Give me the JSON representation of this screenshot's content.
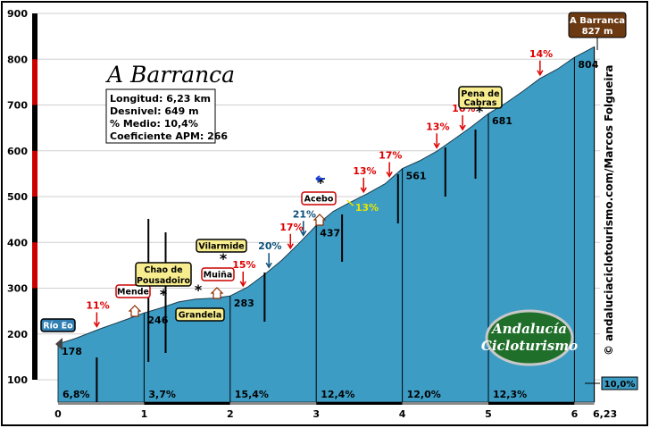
{
  "title": "A Barranca",
  "stats": [
    "Longitud: 6,23 km",
    "Desnivel: 649 m",
    "% Medio: 10,4%",
    "Coeficiente APM: 266"
  ],
  "credit": "© andaluciaciclotourismo.com/Marcos Folgueira",
  "logo": {
    "line1": "Andalucía",
    "line2": "Cicloturismo"
  },
  "summit_badge": {
    "name": "A Barranca",
    "alt": "827 m"
  },
  "average_badge": "10,0%",
  "colors": {
    "fill": "#3c9cc4",
    "red": "#dd0000",
    "blue": "#0b4f7a",
    "yellow": "#e6e600",
    "label_bg": "#f7ed8e",
    "summit_bg": "#6b3a12"
  },
  "chart_data": {
    "type": "area",
    "xlabel": "",
    "ylabel": "",
    "xlim": [
      0,
      6.23
    ],
    "ylim": [
      100,
      900
    ],
    "x_ticks": [
      "0",
      "1",
      "2",
      "3",
      "4",
      "5",
      "6",
      "6,23"
    ],
    "y_ticks": [
      "100",
      "200",
      "300",
      "400",
      "500",
      "600",
      "700",
      "800",
      "900"
    ],
    "profile": [
      [
        0,
        178
      ],
      [
        0.2,
        190
      ],
      [
        0.5,
        212
      ],
      [
        0.8,
        232
      ],
      [
        1.0,
        246
      ],
      [
        1.2,
        257
      ],
      [
        1.4,
        270
      ],
      [
        1.6,
        276
      ],
      [
        1.8,
        278
      ],
      [
        2.0,
        283
      ],
      [
        2.2,
        302
      ],
      [
        2.4,
        330
      ],
      [
        2.6,
        361
      ],
      [
        2.8,
        398
      ],
      [
        3.0,
        437
      ],
      [
        3.2,
        468
      ],
      [
        3.4,
        488
      ],
      [
        3.6,
        507
      ],
      [
        3.8,
        528
      ],
      [
        4.0,
        561
      ],
      [
        4.2,
        578
      ],
      [
        4.4,
        599
      ],
      [
        4.6,
        625
      ],
      [
        4.8,
        652
      ],
      [
        5.0,
        681
      ],
      [
        5.2,
        704
      ],
      [
        5.4,
        730
      ],
      [
        5.6,
        758
      ],
      [
        5.8,
        778
      ],
      [
        6.0,
        804
      ],
      [
        6.23,
        827
      ]
    ],
    "km_altitudes": [
      {
        "x": 0,
        "label": "178"
      },
      {
        "x": 1,
        "label": "246"
      },
      {
        "x": 2,
        "label": "283"
      },
      {
        "x": 3,
        "label": "437"
      },
      {
        "x": 4,
        "label": "561"
      },
      {
        "x": 5,
        "label": "681"
      },
      {
        "x": 6,
        "label": "804"
      }
    ],
    "segment_gradients": [
      {
        "x": 0,
        "label": "6,8%"
      },
      {
        "x": 1,
        "label": "3,7%"
      },
      {
        "x": 2,
        "label": "15,4%"
      },
      {
        "x": 3,
        "label": "12,4%"
      },
      {
        "x": 4,
        "label": "12,0%"
      },
      {
        "x": 5,
        "label": "12,3%"
      }
    ],
    "point_gradients": [
      {
        "x": 0.45,
        "label": "11%",
        "color": "red"
      },
      {
        "x": 2.15,
        "label": "15%",
        "color": "red"
      },
      {
        "x": 2.45,
        "label": "20%",
        "color": "blue"
      },
      {
        "x": 2.7,
        "label": "17%",
        "color": "red"
      },
      {
        "x": 2.85,
        "label": "21%",
        "color": "blue"
      },
      {
        "x": 3.4,
        "label": "13%",
        "color": "yellow"
      },
      {
        "x": 3.55,
        "label": "13%",
        "color": "red"
      },
      {
        "x": 3.85,
        "label": "17%",
        "color": "red"
      },
      {
        "x": 4.4,
        "label": "13%",
        "color": "red"
      },
      {
        "x": 4.7,
        "label": "16%",
        "color": "red"
      },
      {
        "x": 5.6,
        "label": "14%",
        "color": "red"
      }
    ],
    "places": [
      {
        "name": "Río Eo",
        "x": 0
      },
      {
        "name": "Mende",
        "x": 0.9
      },
      {
        "name": "Chao de Pousadoiro",
        "x": 1.2
      },
      {
        "name": "Grandela",
        "x": 1.6
      },
      {
        "name": "Vilarmide",
        "x": 1.92
      },
      {
        "name": "Muiña",
        "x": 1.85
      },
      {
        "name": "Acebo",
        "x": 3.0
      },
      {
        "name": "Pena de Cabras",
        "x": 4.95
      },
      {
        "name": "A Barranca",
        "x": 6.23
      }
    ]
  }
}
